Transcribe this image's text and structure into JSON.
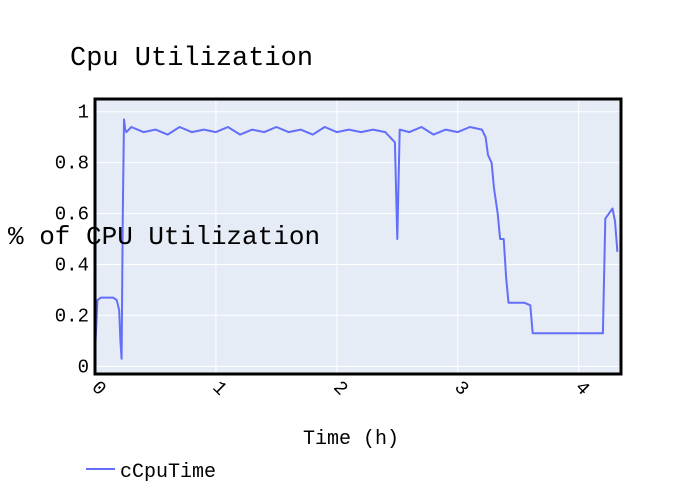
{
  "chart_data": {
    "type": "line",
    "title": "Cpu Utilization",
    "xlabel": "Time (h)",
    "ylabel": "% of CPU Utilization",
    "xlim": [
      0,
      4.35
    ],
    "ylim": [
      -0.03,
      1.05
    ],
    "x_ticks": [
      "0",
      "1",
      "2",
      "3",
      "4"
    ],
    "y_ticks": [
      "0",
      "0.2",
      "0.4",
      "0.6",
      "0.8",
      "1"
    ],
    "grid": true,
    "legend": "bottom-left",
    "colors": {
      "line": "#636efa",
      "plot_bg": "#e5ecf6",
      "grid": "#ffffff",
      "frame": "#000000"
    },
    "series": [
      {
        "name": "cCpuTime",
        "x": [
          0.0,
          0.02,
          0.05,
          0.08,
          0.1,
          0.12,
          0.15,
          0.18,
          0.2,
          0.21,
          0.22,
          0.23,
          0.24,
          0.25,
          0.26,
          0.3,
          0.4,
          0.5,
          0.6,
          0.7,
          0.8,
          0.9,
          1.0,
          1.1,
          1.2,
          1.3,
          1.4,
          1.5,
          1.6,
          1.7,
          1.8,
          1.9,
          2.0,
          2.1,
          2.2,
          2.3,
          2.4,
          2.48,
          2.5,
          2.52,
          2.6,
          2.7,
          2.8,
          2.9,
          3.0,
          3.1,
          3.2,
          3.23,
          3.25,
          3.28,
          3.3,
          3.33,
          3.35,
          3.38,
          3.4,
          3.42,
          3.45,
          3.5,
          3.55,
          3.6,
          3.62,
          3.65,
          3.7,
          3.8,
          3.9,
          4.0,
          4.1,
          4.2,
          4.22,
          4.25,
          4.28,
          4.3,
          4.32
        ],
        "y": [
          0.05,
          0.26,
          0.27,
          0.27,
          0.27,
          0.27,
          0.27,
          0.26,
          0.22,
          0.1,
          0.03,
          0.6,
          0.97,
          0.93,
          0.92,
          0.94,
          0.92,
          0.93,
          0.91,
          0.94,
          0.92,
          0.93,
          0.92,
          0.94,
          0.91,
          0.93,
          0.92,
          0.94,
          0.92,
          0.93,
          0.91,
          0.94,
          0.92,
          0.93,
          0.92,
          0.93,
          0.92,
          0.88,
          0.5,
          0.93,
          0.92,
          0.94,
          0.91,
          0.93,
          0.92,
          0.94,
          0.93,
          0.9,
          0.83,
          0.8,
          0.7,
          0.6,
          0.5,
          0.5,
          0.35,
          0.25,
          0.25,
          0.25,
          0.25,
          0.24,
          0.13,
          0.13,
          0.13,
          0.13,
          0.13,
          0.13,
          0.13,
          0.13,
          0.58,
          0.6,
          0.62,
          0.57,
          0.45
        ]
      }
    ]
  }
}
